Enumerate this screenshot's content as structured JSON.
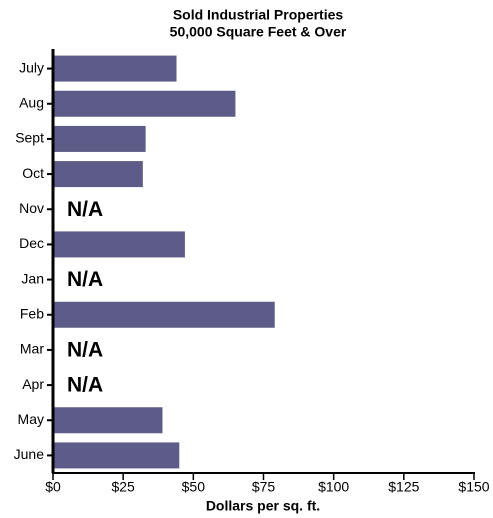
{
  "chart_data": {
    "type": "barh",
    "title": "Sold Industrial Properties",
    "subtitle": "50,000 Square Feet & Over",
    "xlabel": "Dollars per sq. ft.",
    "categories": [
      "July",
      "Aug",
      "Sept",
      "Oct",
      "Nov",
      "Dec",
      "Jan",
      "Feb",
      "Mar",
      "Apr",
      "May",
      "June"
    ],
    "values": [
      44,
      65,
      33,
      32,
      null,
      47,
      null,
      79,
      null,
      null,
      39,
      45
    ],
    "value_labels": [
      null,
      null,
      null,
      null,
      "N/A",
      null,
      "N/A",
      null,
      "N/A",
      "N/A",
      null,
      null
    ],
    "color": "#5d5b87",
    "xlim": [
      0,
      150
    ],
    "xticks": [
      {
        "value": 0,
        "label": "$0"
      },
      {
        "value": 25,
        "label": "$25"
      },
      {
        "value": 50,
        "label": "$50"
      },
      {
        "value": 75,
        "label": "$75"
      },
      {
        "value": 100,
        "label": "$100"
      },
      {
        "value": 125,
        "label": "$125"
      },
      {
        "value": 150,
        "label": "$150"
      }
    ],
    "grid": false
  }
}
